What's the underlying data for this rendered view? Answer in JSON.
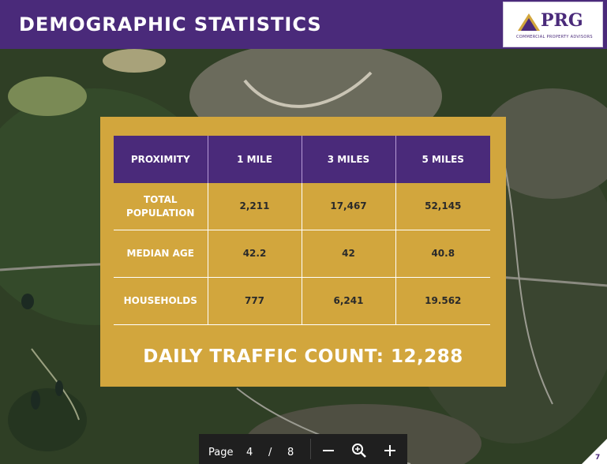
{
  "header": {
    "title": "DEMOGRAPHIC STATISTICS",
    "logo_text": "PRG",
    "logo_subtitle": "COMMERCIAL PROPERTY ADVISORS",
    "brand_color": "#4a2a7a"
  },
  "table": {
    "columns": [
      "PROXIMITY",
      "1 MILE",
      "3 MILES",
      "5 MILES"
    ],
    "rows": [
      {
        "label": "TOTAL POPULATION",
        "values": [
          "2,211",
          "17,467",
          "52,145"
        ]
      },
      {
        "label": "MEDIAN AGE",
        "values": [
          "42.2",
          "42",
          "40.8"
        ]
      },
      {
        "label": "HOUSEHOLDS",
        "values": [
          "777",
          "6,241",
          "19.562"
        ]
      }
    ]
  },
  "traffic": "DAILY TRAFFIC COUNT: 12,288",
  "pager": {
    "label": "Page",
    "current": "4",
    "separator": "/",
    "total": "8",
    "zoom_out_icon": "minus-icon",
    "zoom_icon": "magnifier-plus-icon",
    "zoom_in_icon": "plus-icon"
  },
  "page_number": "7",
  "colors": {
    "card": "#d2a63d",
    "header": "#4a2a7a"
  }
}
